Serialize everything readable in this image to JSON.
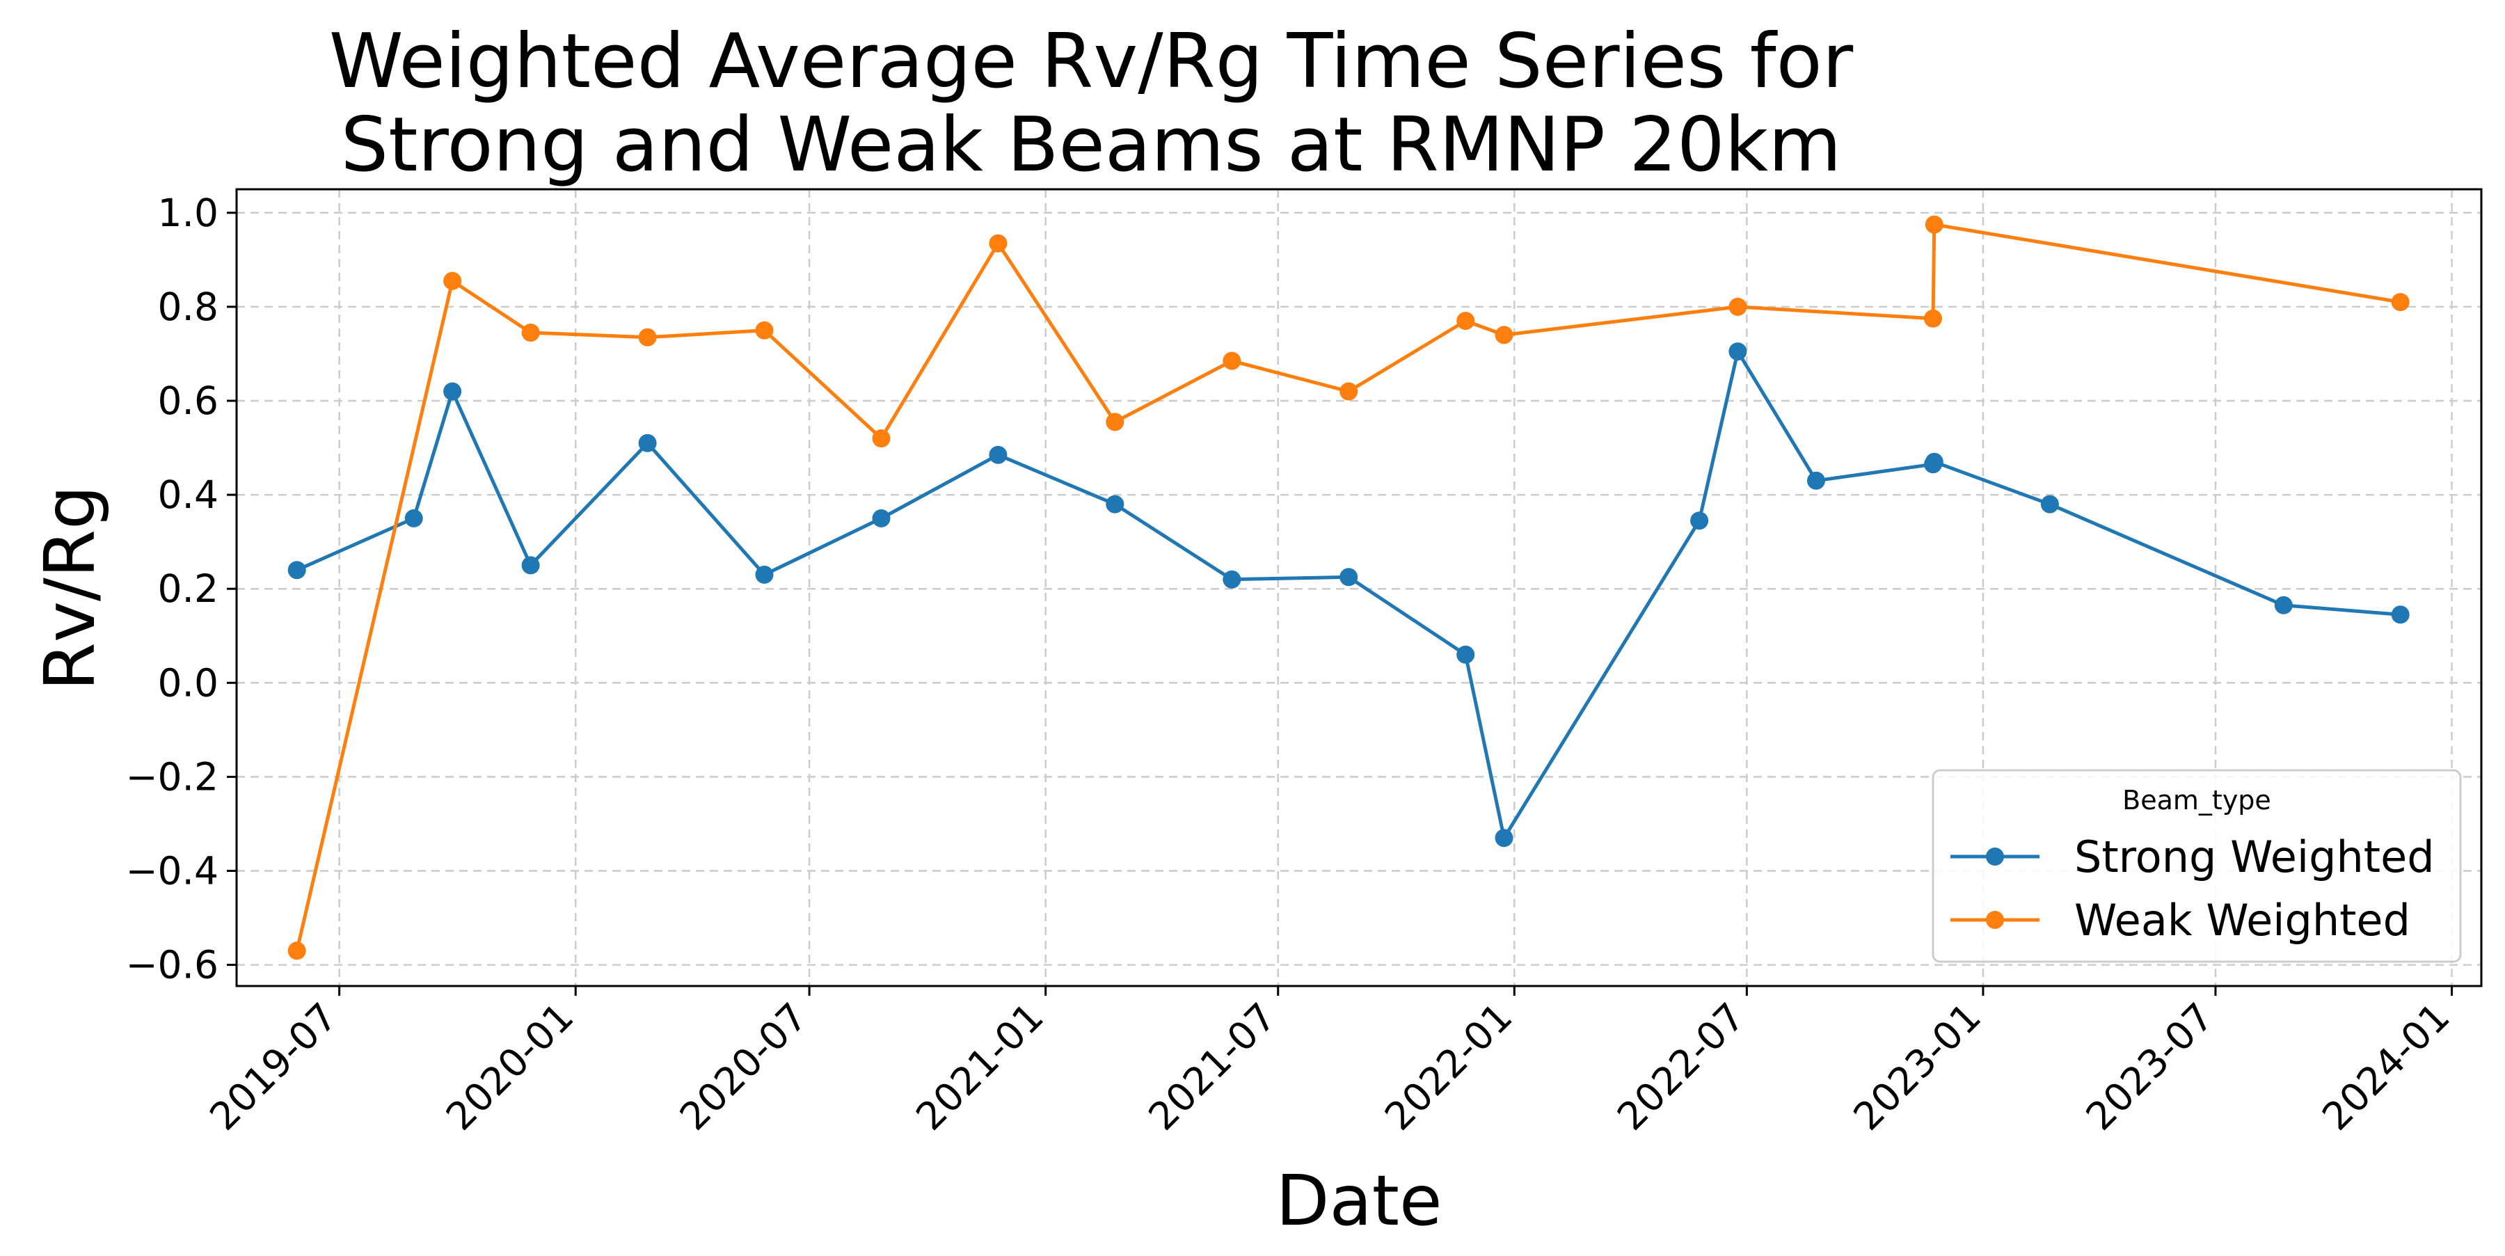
{
  "chart_data": {
    "type": "line",
    "title": "Weighted Average Rv/Rg Time Series for\nStrong and Weak Beams at RMNP 20km",
    "xlabel": "Date",
    "ylabel": "Rv/Rg",
    "xlim": [
      "2019-04-12",
      "2024-01-24"
    ],
    "ylim": [
      -0.645,
      1.05
    ],
    "x_ticks": [
      "2019-07",
      "2020-01",
      "2020-07",
      "2021-01",
      "2021-07",
      "2022-01",
      "2022-07",
      "2023-01",
      "2023-07",
      "2024-01"
    ],
    "y_ticks": [
      "1.0",
      "0.8",
      "0.6",
      "0.4",
      "0.2",
      "0.0",
      "−0.2",
      "−0.4",
      "−0.6"
    ],
    "grid": true,
    "legend": {
      "title": "Beam_type",
      "placement": "lower-right"
    },
    "series": [
      {
        "name": "Strong Weighted",
        "color": "#1f77b4",
        "marker": "circle",
        "points": [
          [
            "2019-05-29",
            0.24
          ],
          [
            "2019-08-28",
            0.35
          ],
          [
            "2019-09-27",
            0.62
          ],
          [
            "2019-11-27",
            0.25
          ],
          [
            "2020-02-26",
            0.51
          ],
          [
            "2020-05-27",
            0.23
          ],
          [
            "2020-08-26",
            0.35
          ],
          [
            "2020-11-25",
            0.485
          ],
          [
            "2021-02-24",
            0.38
          ],
          [
            "2021-05-26",
            0.22
          ],
          [
            "2021-08-25",
            0.225
          ],
          [
            "2021-11-24",
            0.06
          ],
          [
            "2021-12-24",
            -0.33
          ],
          [
            "2022-05-25",
            0.345
          ],
          [
            "2022-06-24",
            0.705
          ],
          [
            "2022-08-24",
            0.43
          ],
          [
            "2022-11-23",
            0.465
          ],
          [
            "2022-11-24",
            0.47
          ],
          [
            "2023-02-22",
            0.38
          ],
          [
            "2023-08-23",
            0.165
          ],
          [
            "2023-11-22",
            0.145
          ]
        ]
      },
      {
        "name": "Weak Weighted",
        "color": "#ff7f0e",
        "marker": "circle",
        "points": [
          [
            "2019-05-29",
            -0.57
          ],
          [
            "2019-09-27",
            0.855
          ],
          [
            "2019-11-27",
            0.745
          ],
          [
            "2020-02-26",
            0.735
          ],
          [
            "2020-05-27",
            0.75
          ],
          [
            "2020-08-26",
            0.52
          ],
          [
            "2020-11-25",
            0.935
          ],
          [
            "2021-02-24",
            0.555
          ],
          [
            "2021-05-26",
            0.685
          ],
          [
            "2021-08-25",
            0.62
          ],
          [
            "2021-11-24",
            0.77
          ],
          [
            "2021-12-24",
            0.74
          ],
          [
            "2022-06-24",
            0.8
          ],
          [
            "2022-11-23",
            0.775
          ],
          [
            "2022-11-24",
            0.975
          ],
          [
            "2023-11-22",
            0.81
          ]
        ]
      }
    ]
  }
}
